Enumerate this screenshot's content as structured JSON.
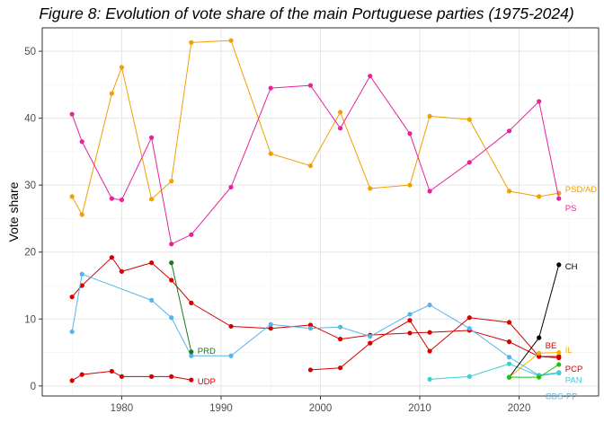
{
  "chart_data": {
    "type": "line",
    "title": "Figure 8: Evolution of vote share of the main Portuguese parties (1975-2024)",
    "xlabel": "",
    "ylabel": "Vote share",
    "xlim": [
      1972,
      2028
    ],
    "ylim": [
      -1.5,
      53.5
    ],
    "x_ticks": [
      1980,
      1990,
      2000,
      2010,
      2020
    ],
    "y_ticks": [
      0,
      10,
      20,
      30,
      40,
      50
    ],
    "grid": true,
    "legend": "none",
    "series": [
      {
        "name": "PSD/AD",
        "color": "#f0a000",
        "label_x": 2024,
        "label_y": 29.4,
        "points": [
          [
            1975,
            28.3
          ],
          [
            1976,
            25.6
          ],
          [
            1979,
            43.7
          ],
          [
            1980,
            47.6
          ],
          [
            1983,
            27.9
          ],
          [
            1985,
            30.6
          ],
          [
            1987,
            51.3
          ],
          [
            1991,
            51.6
          ],
          [
            1995,
            34.7
          ],
          [
            1999,
            32.9
          ],
          [
            2002,
            40.9
          ],
          [
            2005,
            29.5
          ],
          [
            2009,
            30.0
          ],
          [
            2011,
            40.3
          ],
          [
            2015,
            39.8
          ],
          [
            2019,
            29.1
          ],
          [
            2022,
            28.3
          ],
          [
            2024,
            28.8
          ]
        ]
      },
      {
        "name": "PS",
        "color": "#e6239b",
        "label_x": 2024,
        "label_y": 26.6,
        "points": [
          [
            1975,
            40.6
          ],
          [
            1976,
            36.5
          ],
          [
            1979,
            28.0
          ],
          [
            1980,
            27.8
          ],
          [
            1983,
            37.1
          ],
          [
            1985,
            21.2
          ],
          [
            1987,
            22.6
          ],
          [
            1991,
            29.7
          ],
          [
            1995,
            44.5
          ],
          [
            1999,
            44.9
          ],
          [
            2002,
            38.5
          ],
          [
            2005,
            46.3
          ],
          [
            2009,
            37.7
          ],
          [
            2011,
            29.1
          ],
          [
            2015,
            33.4
          ],
          [
            2019,
            38.1
          ],
          [
            2022,
            42.5
          ],
          [
            2024,
            28.0
          ]
        ]
      },
      {
        "name": "PCP",
        "color": "#d40000",
        "label_x": 2024,
        "label_y": 2.6,
        "points": [
          [
            1975,
            13.3
          ],
          [
            1976,
            15.0
          ],
          [
            1979,
            19.2
          ],
          [
            1980,
            17.1
          ],
          [
            1983,
            18.4
          ],
          [
            1985,
            15.8
          ],
          [
            1987,
            12.4
          ],
          [
            1991,
            8.9
          ],
          [
            1995,
            8.6
          ],
          [
            1999,
            9.1
          ],
          [
            2002,
            7.0
          ],
          [
            2005,
            7.6
          ],
          [
            2009,
            7.9
          ],
          [
            2011,
            8.0
          ],
          [
            2015,
            8.3
          ],
          [
            2019,
            6.6
          ],
          [
            2022,
            4.4
          ],
          [
            2024,
            4.2
          ]
        ]
      },
      {
        "name": "CDS-PP",
        "color": "#58b4e8",
        "label_x": 2022,
        "label_y": -1.5,
        "points": [
          [
            1975,
            8.1
          ],
          [
            1976,
            16.7
          ],
          [
            1983,
            12.8
          ],
          [
            1985,
            10.2
          ],
          [
            1987,
            4.5
          ],
          [
            1991,
            4.5
          ],
          [
            1995,
            9.2
          ],
          [
            1999,
            8.6
          ],
          [
            2002,
            8.8
          ],
          [
            2005,
            7.4
          ],
          [
            2009,
            10.7
          ],
          [
            2011,
            12.1
          ],
          [
            2015,
            8.6
          ],
          [
            2019,
            4.3
          ],
          [
            2022,
            1.6
          ],
          [
            2024,
            2.0
          ]
        ]
      },
      {
        "name": "UDP",
        "color": "#d40000",
        "label_x": 1987,
        "label_y": 0.7,
        "points": [
          [
            1975,
            0.8
          ],
          [
            1976,
            1.7
          ],
          [
            1979,
            2.2
          ],
          [
            1980,
            1.4
          ],
          [
            1983,
            1.4
          ],
          [
            1985,
            1.4
          ],
          [
            1987,
            0.9
          ]
        ]
      },
      {
        "name": "PRD",
        "color": "#1a7a1a",
        "label_x": 1987,
        "label_y": 5.3,
        "points": [
          [
            1985,
            18.4
          ],
          [
            1987,
            5.1
          ]
        ]
      },
      {
        "name": "BE",
        "color": "#d40000",
        "label_x": 2022,
        "label_y": 6.1,
        "points": [
          [
            1999,
            2.4
          ],
          [
            2002,
            2.7
          ],
          [
            2005,
            6.4
          ],
          [
            2009,
            9.8
          ],
          [
            2011,
            5.2
          ],
          [
            2015,
            10.2
          ],
          [
            2019,
            9.5
          ],
          [
            2022,
            4.4
          ],
          [
            2024,
            4.4
          ]
        ]
      },
      {
        "name": "PAN",
        "color": "#3ecfd4",
        "label_x": 2024,
        "label_y": 0.9,
        "points": [
          [
            2011,
            1.0
          ],
          [
            2015,
            1.4
          ],
          [
            2019,
            3.3
          ],
          [
            2022,
            1.5
          ],
          [
            2024,
            1.9
          ]
        ]
      },
      {
        "name": "CH",
        "color": "#000000",
        "label_x": 2024,
        "label_y": 17.9,
        "points": [
          [
            2019,
            1.3
          ],
          [
            2022,
            7.2
          ],
          [
            2024,
            18.1
          ]
        ]
      },
      {
        "name": "IL",
        "color": "#f0b400",
        "label_x": 2024,
        "label_y": 5.4,
        "points": [
          [
            2019,
            1.3
          ],
          [
            2022,
            4.9
          ],
          [
            2024,
            5.0
          ]
        ]
      },
      {
        "name": "",
        "color": "#18c418",
        "label_x": null,
        "label_y": null,
        "points": [
          [
            2019,
            1.3
          ],
          [
            2022,
            1.3
          ],
          [
            2024,
            3.2
          ]
        ]
      }
    ]
  }
}
